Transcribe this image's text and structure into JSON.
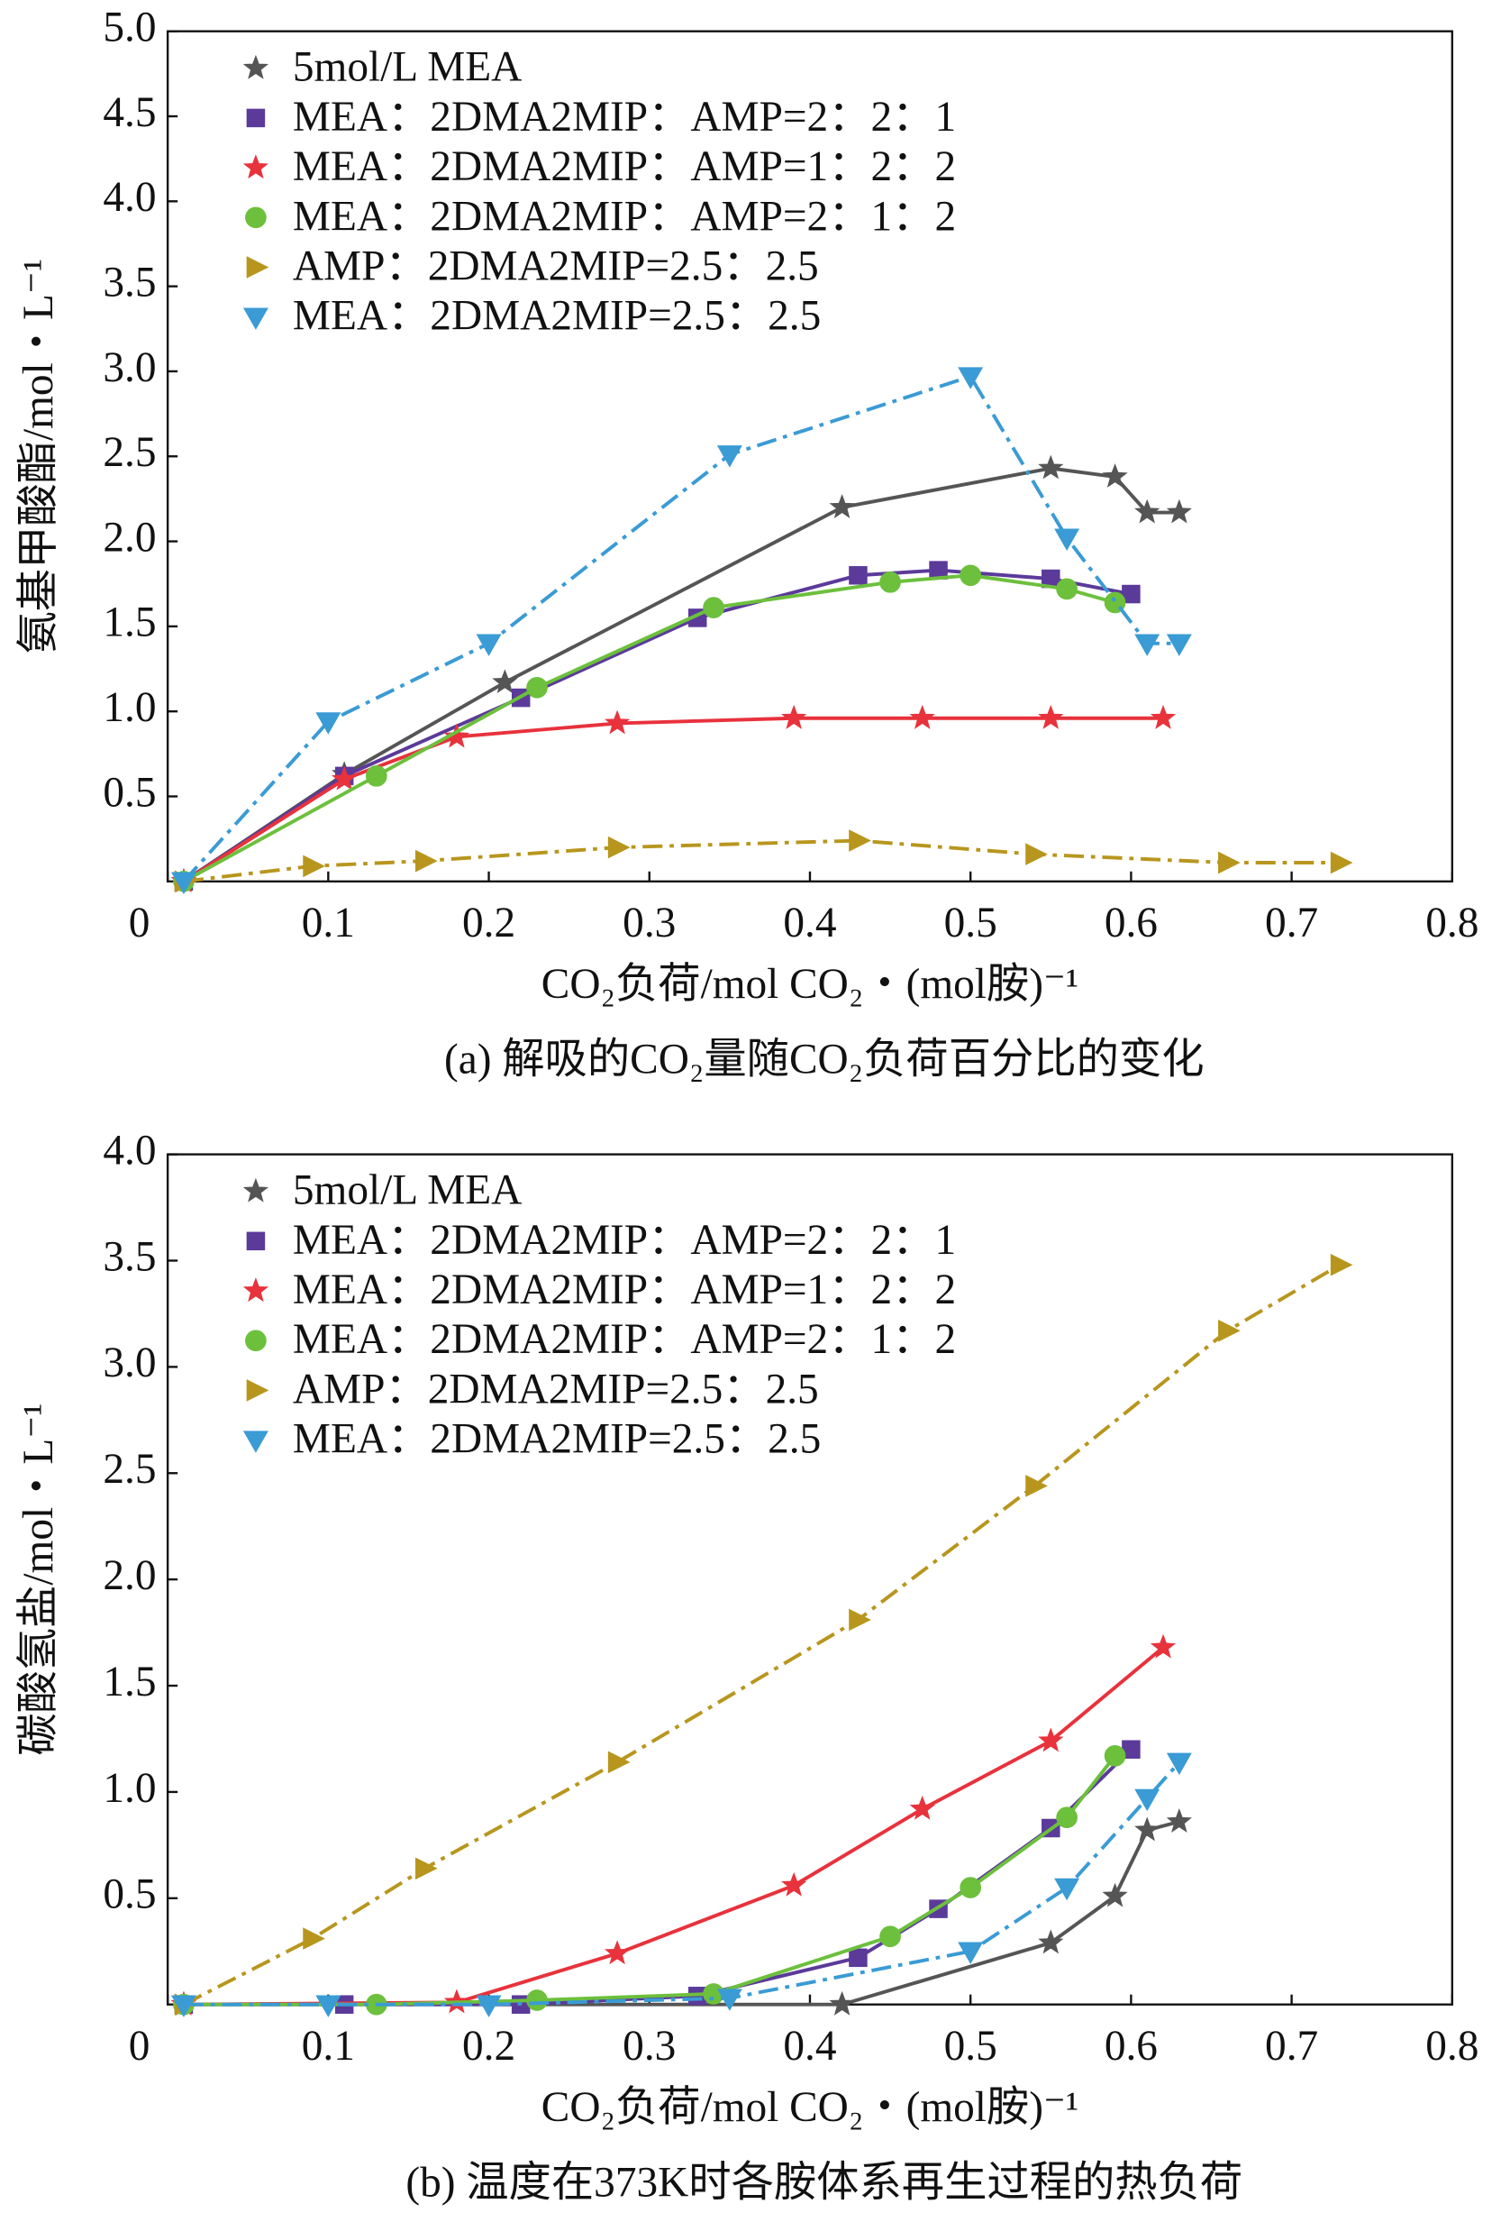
{
  "chart_data": [
    {
      "type": "line",
      "xlabel": "CO₂负荷/mol CO₂・(mol胺)⁻¹",
      "ylabel": "氨基甲酸酯/mol・L⁻¹",
      "caption": "(a) 解吸的CO₂量随CO₂负荷百分比的变化",
      "xlim": [
        0,
        0.8
      ],
      "ylim": [
        0,
        5
      ],
      "xticks": [
        0,
        0.1,
        0.2,
        0.3,
        0.4,
        0.5,
        0.6,
        0.7,
        0.8
      ],
      "yticks": [
        0.5,
        {
          "value": 1,
          "label": "1.0"
        },
        1.5,
        {
          "value": 2,
          "label": "2.0"
        },
        2.5,
        {
          "value": 3,
          "label": "3.0"
        },
        3.5,
        {
          "value": 4,
          "label": "4.0"
        },
        4.5,
        {
          "value": 5,
          "label": "5.0"
        }
      ],
      "legend": "upper left",
      "series": [
        {
          "name": "5mol/L MEA",
          "color": "#555555",
          "marker": "star",
          "linestyle": "solid",
          "x": [
            0.01,
            0.11,
            0.21,
            0.42,
            0.55,
            0.59,
            0.61,
            0.63
          ],
          "values": [
            0,
            0.63,
            1.17,
            2.2,
            2.43,
            2.38,
            2.17,
            2.17
          ]
        },
        {
          "name": "MEA：2DMA2MIP：AMP=2：2：1",
          "color": "#5b3a9a",
          "marker": "square",
          "linestyle": "solid",
          "x": [
            0.01,
            0.11,
            0.22,
            0.33,
            0.43,
            0.48,
            0.55,
            0.6
          ],
          "values": [
            0,
            0.62,
            1.08,
            1.55,
            1.8,
            1.83,
            1.78,
            1.69
          ]
        },
        {
          "name": "MEA：2DMA2MIP：AMP=1：2：2",
          "color": "#e8323c",
          "marker": "star",
          "linestyle": "solid",
          "x": [
            0.01,
            0.11,
            0.18,
            0.28,
            0.39,
            0.47,
            0.55,
            0.62
          ],
          "values": [
            0,
            0.6,
            0.85,
            0.93,
            0.96,
            0.96,
            0.96,
            0.96
          ]
        },
        {
          "name": "MEA：2DMA2MIP：AMP=2：1：2",
          "color": "#6cc03c",
          "marker": "circle",
          "linestyle": "solid",
          "x": [
            0.01,
            0.13,
            0.23,
            0.34,
            0.45,
            0.5,
            0.56,
            0.59
          ],
          "values": [
            0,
            0.62,
            1.14,
            1.61,
            1.76,
            1.8,
            1.72,
            1.64
          ]
        },
        {
          "name": "AMP：2DMA2MIP=2.5：2.5",
          "color": "#b8961e",
          "marker": "triangle-right",
          "linestyle": "dashdot",
          "x": [
            0.01,
            0.09,
            0.16,
            0.28,
            0.43,
            0.54,
            0.66,
            0.73
          ],
          "values": [
            0,
            0.09,
            0.12,
            0.2,
            0.24,
            0.16,
            0.11,
            0.11
          ]
        },
        {
          "name": "MEA：2DMA2MIP=2.5：2.5",
          "color": "#3a9bd5",
          "marker": "triangle-down",
          "linestyle": "dashdot",
          "x": [
            0.01,
            0.1,
            0.2,
            0.35,
            0.5,
            0.56,
            0.61,
            0.63
          ],
          "values": [
            0,
            0.94,
            1.4,
            2.51,
            2.97,
            2.02,
            1.4,
            1.4
          ]
        }
      ]
    },
    {
      "type": "line",
      "xlabel": "CO₂负荷/mol CO₂・(mol胺)⁻¹",
      "ylabel": "碳酸氢盐/mol・L⁻¹",
      "caption": "(b) 温度在373K时各胺体系再生过程的热负荷",
      "xlim": [
        0,
        0.8
      ],
      "ylim": [
        0,
        4
      ],
      "xticks": [
        0,
        0.1,
        0.2,
        0.3,
        0.4,
        0.5,
        0.6,
        0.7,
        0.8
      ],
      "yticks": [
        0.5,
        {
          "value": 1,
          "label": "1.0"
        },
        1.5,
        {
          "value": 2,
          "label": "2.0"
        },
        2.5,
        {
          "value": 3,
          "label": "3.0"
        },
        3.5,
        {
          "value": 4,
          "label": "4.0"
        }
      ],
      "legend": "upper left",
      "series": [
        {
          "name": "5mol/L MEA",
          "color": "#555555",
          "marker": "star",
          "linestyle": "solid",
          "x": [
            0.01,
            0.42,
            0.55,
            0.59,
            0.61,
            0.63
          ],
          "values": [
            0,
            0,
            0.29,
            0.51,
            0.82,
            0.86
          ]
        },
        {
          "name": "MEA：2DMA2MIP：AMP=2：2：1",
          "color": "#5b3a9a",
          "marker": "square",
          "linestyle": "solid",
          "x": [
            0.01,
            0.11,
            0.22,
            0.33,
            0.43,
            0.48,
            0.55,
            0.6
          ],
          "values": [
            0,
            0,
            0,
            0.04,
            0.22,
            0.45,
            0.83,
            1.2
          ]
        },
        {
          "name": "MEA：2DMA2MIP：AMP=1：2：2",
          "color": "#e8323c",
          "marker": "star",
          "linestyle": "solid",
          "x": [
            0.01,
            0.18,
            0.28,
            0.39,
            0.47,
            0.55,
            0.62
          ],
          "values": [
            0,
            0.01,
            0.24,
            0.56,
            0.92,
            1.24,
            1.68
          ]
        },
        {
          "name": "MEA：2DMA2MIP：AMP=2：1：2",
          "color": "#6cc03c",
          "marker": "circle",
          "linestyle": "solid",
          "x": [
            0.01,
            0.13,
            0.23,
            0.34,
            0.45,
            0.5,
            0.56,
            0.59
          ],
          "values": [
            0,
            0,
            0.02,
            0.05,
            0.32,
            0.55,
            0.88,
            1.17
          ]
        },
        {
          "name": "AMP：2DMA2MIP=2.5：2.5",
          "color": "#b8961e",
          "marker": "triangle-right",
          "linestyle": "dashdot",
          "x": [
            0.01,
            0.09,
            0.16,
            0.28,
            0.43,
            0.54,
            0.66,
            0.73
          ],
          "values": [
            0,
            0.31,
            0.64,
            1.14,
            1.81,
            2.44,
            3.17,
            3.48
          ]
        },
        {
          "name": "MEA：2DMA2MIP=2.5：2.5",
          "color": "#3a9bd5",
          "marker": "triangle-down",
          "linestyle": "dashdot",
          "x": [
            0.01,
            0.1,
            0.2,
            0.35,
            0.5,
            0.56,
            0.61,
            0.63
          ],
          "values": [
            0,
            0,
            0,
            0.03,
            0.25,
            0.55,
            0.97,
            1.14
          ]
        }
      ]
    }
  ]
}
